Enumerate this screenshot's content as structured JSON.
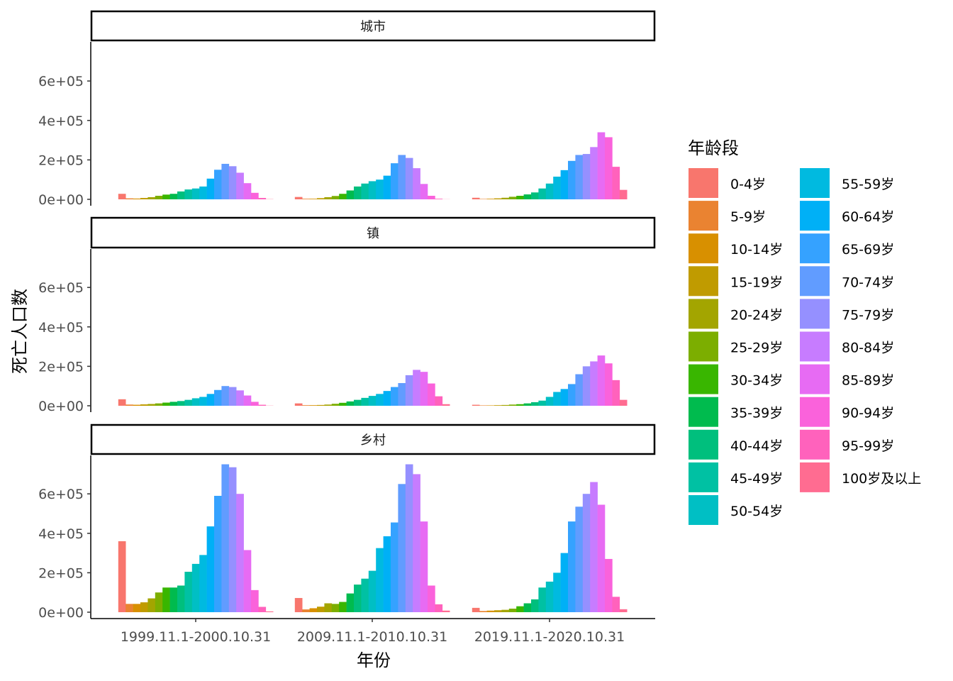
{
  "chart_data": {
    "type": "bar",
    "xlabel": "年份",
    "ylabel": "死亡人口数",
    "ylim": [
      0,
      800000
    ],
    "yticks": [
      0,
      200000,
      400000,
      600000
    ],
    "ytick_labels": [
      "0e+00",
      "2e+05",
      "4e+05",
      "6e+05"
    ],
    "categories": [
      "1999.11.1-2000.10.31",
      "2009.11.1-2010.10.31",
      "2019.11.1-2020.10.31"
    ],
    "legend_title": "年龄段",
    "legend_position": "right",
    "age_groups": [
      "0-4岁",
      "5-9岁",
      "10-14岁",
      "15-19岁",
      "20-24岁",
      "25-29岁",
      "30-34岁",
      "35-39岁",
      "40-44岁",
      "45-49岁",
      "50-54岁",
      "55-59岁",
      "60-64岁",
      "65-69岁",
      "70-74岁",
      "75-79岁",
      "80-84岁",
      "85-89岁",
      "90-94岁",
      "95-99岁",
      "100岁及以上"
    ],
    "colors": [
      "#F8766D",
      "#EA8331",
      "#D89000",
      "#C09B00",
      "#A3A500",
      "#7CAE00",
      "#39B600",
      "#00BB4E",
      "#00BF7D",
      "#00C1A3",
      "#00BFC4",
      "#00BAE0",
      "#00B0F6",
      "#35A2FF",
      "#619CFF",
      "#9590FF",
      "#C77CFF",
      "#E76BF3",
      "#FA62DB",
      "#FF62BC",
      "#FF6C91"
    ],
    "panels": [
      {
        "name": "城市",
        "series": [
          [
            28000,
            5000,
            4000,
            7000,
            11000,
            18000,
            24000,
            28000,
            40000,
            50000,
            55000,
            65000,
            105000,
            150000,
            180000,
            168000,
            135000,
            82000,
            33000,
            7000,
            1000
          ],
          [
            12000,
            3000,
            3000,
            6000,
            11000,
            17000,
            28000,
            45000,
            65000,
            80000,
            92000,
            100000,
            120000,
            183000,
            225000,
            210000,
            158000,
            78000,
            18000,
            3000,
            500
          ],
          [
            8000,
            2000,
            3000,
            5000,
            8000,
            13000,
            18000,
            25000,
            35000,
            55000,
            80000,
            115000,
            148000,
            195000,
            225000,
            230000,
            265000,
            340000,
            315000,
            165000,
            48000
          ]
        ]
      },
      {
        "name": "镇",
        "series": [
          [
            33000,
            6000,
            5000,
            7000,
            9000,
            12000,
            16000,
            20000,
            24000,
            30000,
            38000,
            45000,
            60000,
            80000,
            100000,
            95000,
            78000,
            52000,
            20000,
            5000,
            800
          ],
          [
            12000,
            3000,
            3000,
            4000,
            6000,
            10000,
            15000,
            22000,
            30000,
            40000,
            50000,
            60000,
            75000,
            95000,
            115000,
            155000,
            182000,
            172000,
            113000,
            48000,
            8000
          ],
          [
            5000,
            2000,
            2000,
            3000,
            4000,
            6000,
            8000,
            12000,
            18000,
            26000,
            45000,
            70000,
            85000,
            110000,
            160000,
            200000,
            225000,
            255000,
            215000,
            130000,
            30000
          ]
        ]
      },
      {
        "name": "乡村",
        "series": [
          [
            360000,
            42000,
            42000,
            50000,
            70000,
            100000,
            125000,
            125000,
            135000,
            205000,
            245000,
            290000,
            435000,
            590000,
            750000,
            735000,
            600000,
            315000,
            112000,
            27000,
            4000
          ],
          [
            72000,
            14000,
            20000,
            28000,
            45000,
            42000,
            52000,
            95000,
            140000,
            170000,
            210000,
            325000,
            385000,
            455000,
            650000,
            750000,
            700000,
            460000,
            135000,
            40000,
            8000
          ],
          [
            22000,
            6000,
            8000,
            10000,
            12000,
            18000,
            30000,
            45000,
            65000,
            125000,
            155000,
            200000,
            300000,
            460000,
            535000,
            600000,
            660000,
            545000,
            270000,
            78000,
            15000
          ]
        ]
      }
    ]
  }
}
